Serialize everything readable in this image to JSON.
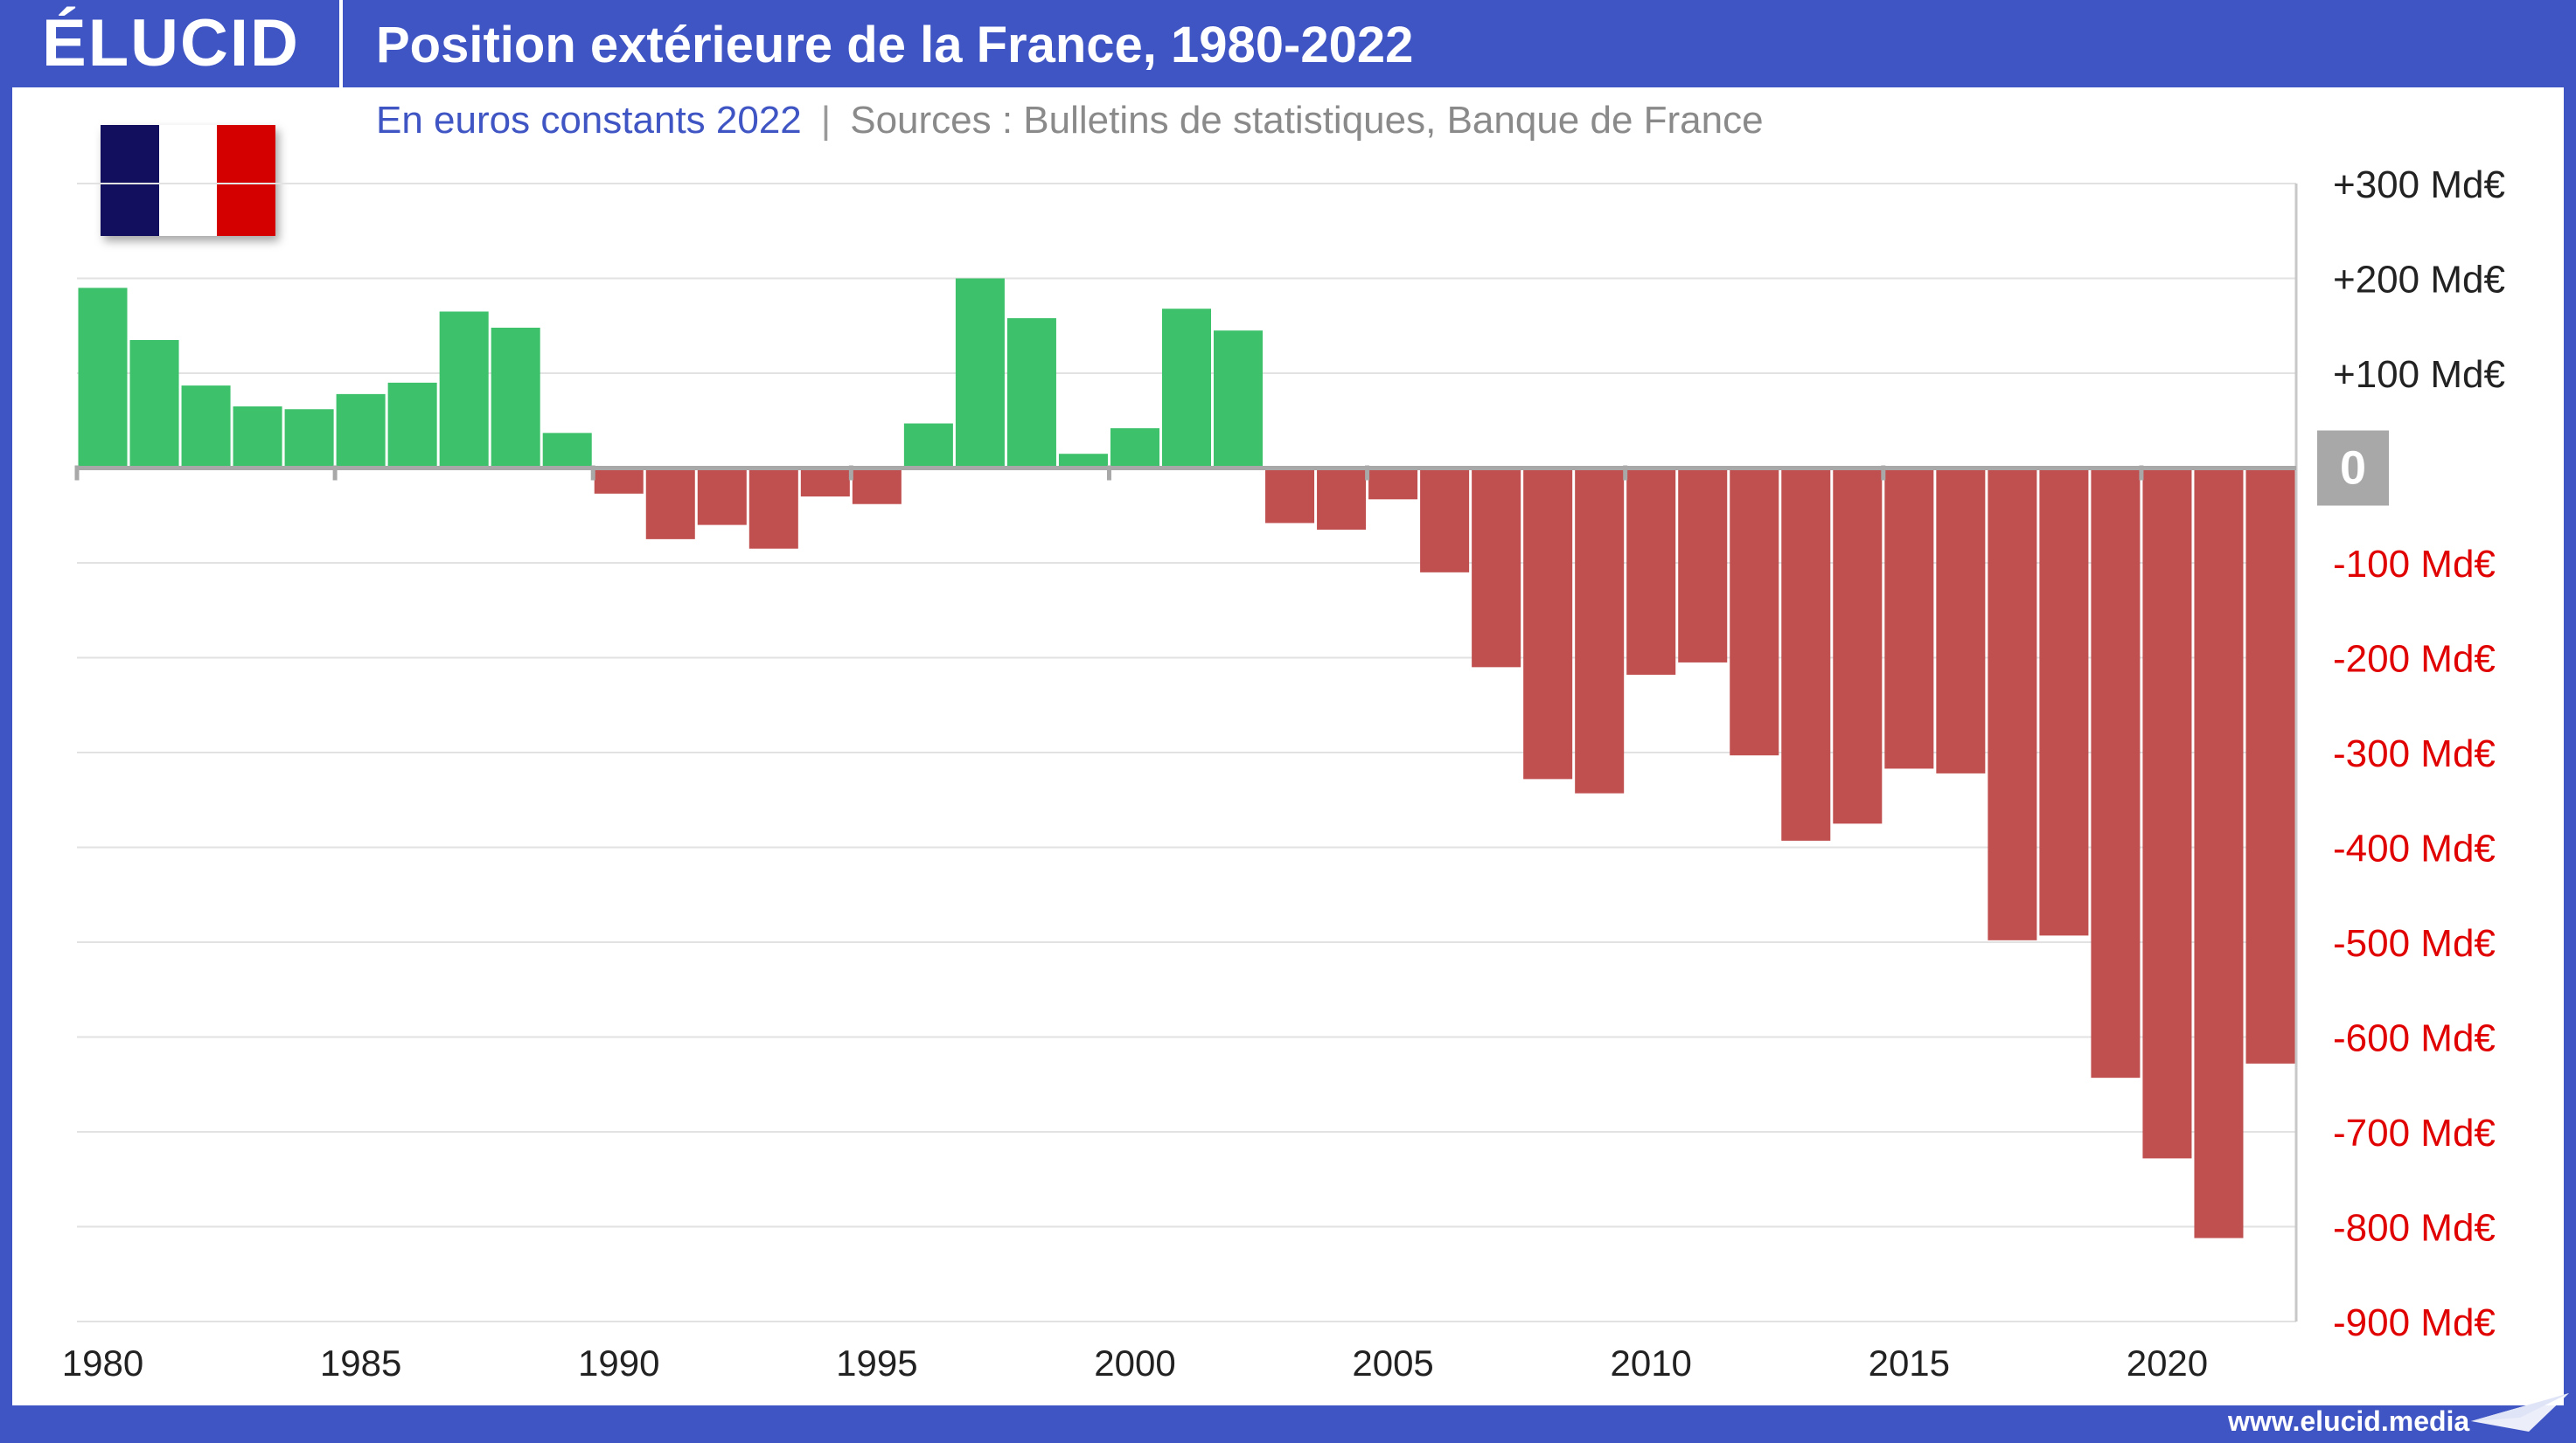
{
  "brand": {
    "logo": "ÉLUCID",
    "url": "www.elucid.media"
  },
  "header": {
    "title": "Position extérieure de la France, 1980-2022",
    "subtitle_units": "En euros constants 2022",
    "subtitle_separator": "|",
    "subtitle_sources": "Sources : Bulletins de statistiques, Banque de France"
  },
  "colors": {
    "positive": "#3dc16a",
    "negative": "#c05050",
    "brand": "#3f55c4",
    "negative_label": "#e00000",
    "zero_badge": "#a8a8a8"
  },
  "icons": {
    "flag": "france-flag-icon",
    "footer": "paper-plane-icon"
  },
  "chart_data": {
    "type": "bar",
    "title": "Position extérieure de la France, 1980-2022",
    "subtitle": "En euros constants 2022",
    "ylabel": "",
    "xlabel": "",
    "unit": "Md€",
    "ylim": [
      -900,
      300
    ],
    "grid": true,
    "legend": "none",
    "x": [
      1980,
      1981,
      1982,
      1983,
      1984,
      1985,
      1986,
      1987,
      1988,
      1989,
      1990,
      1991,
      1992,
      1993,
      1994,
      1995,
      1996,
      1997,
      1998,
      1999,
      2000,
      2001,
      2002,
      2003,
      2004,
      2005,
      2006,
      2007,
      2008,
      2009,
      2010,
      2011,
      2012,
      2013,
      2014,
      2015,
      2016,
      2017,
      2018,
      2019,
      2020,
      2021,
      2022
    ],
    "values": [
      190,
      135,
      87,
      65,
      62,
      78,
      90,
      165,
      148,
      37,
      -27,
      -75,
      -60,
      -85,
      -30,
      -38,
      47,
      200,
      158,
      15,
      42,
      168,
      145,
      -58,
      -65,
      -33,
      -110,
      -210,
      -328,
      -343,
      -218,
      -205,
      -303,
      -393,
      -375,
      -317,
      -322,
      -498,
      -493,
      -643,
      -728,
      -812,
      -628
    ],
    "x_ticks": [
      "1980",
      "1985",
      "1990",
      "1995",
      "2000",
      "2005",
      "2010",
      "2015",
      "2020"
    ],
    "y_ticks": [
      {
        "value": 300,
        "label": "+300 Md€"
      },
      {
        "value": 200,
        "label": "+200 Md€"
      },
      {
        "value": 100,
        "label": "+100 Md€"
      },
      {
        "value": 0,
        "label": "0"
      },
      {
        "value": -100,
        "label": "-100 Md€"
      },
      {
        "value": -200,
        "label": "-200 Md€"
      },
      {
        "value": -300,
        "label": "-300 Md€"
      },
      {
        "value": -400,
        "label": "-400 Md€"
      },
      {
        "value": -500,
        "label": "-500 Md€"
      },
      {
        "value": -600,
        "label": "-600 Md€"
      },
      {
        "value": -700,
        "label": "-700 Md€"
      },
      {
        "value": -800,
        "label": "-800 Md€"
      },
      {
        "value": -900,
        "label": "-900 Md€"
      }
    ]
  }
}
